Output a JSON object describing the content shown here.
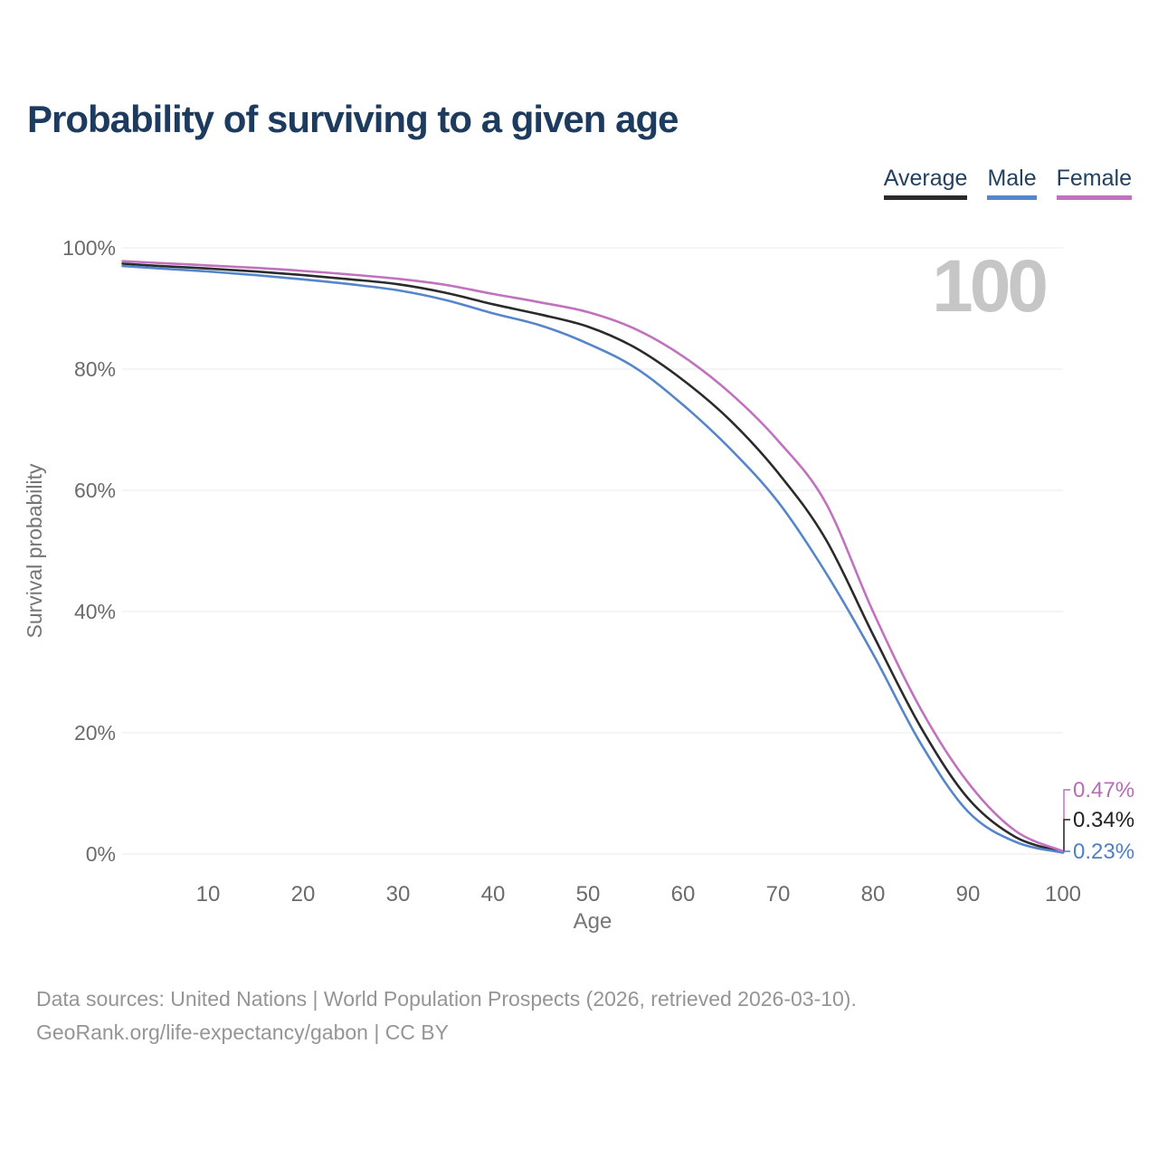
{
  "title": "Probability of surviving to a given age",
  "watermark": "100",
  "legend": [
    {
      "label": "Average",
      "color": "#2b2b2b"
    },
    {
      "label": "Male",
      "color": "#5585cb"
    },
    {
      "label": "Female",
      "color": "#c172bf"
    }
  ],
  "end_labels": [
    {
      "text": "0.47%",
      "value": 0.47,
      "color": "#b86cb5"
    },
    {
      "text": "0.34%",
      "value": 0.34,
      "color": "#222222"
    },
    {
      "text": "0.23%",
      "value": 0.23,
      "color": "#4f7fc7"
    }
  ],
  "footer": {
    "line1": "Data sources: United Nations | World Population Prospects (2026, retrieved 2026-03-10).",
    "line2": "GeoRank.org/life-expectancy/gabon | CC BY"
  },
  "chart_data": {
    "type": "line",
    "title": "Probability of surviving to a given age",
    "xlabel": "Age",
    "ylabel": "Survival probability",
    "xlim": [
      0,
      100
    ],
    "ylim": [
      0,
      100
    ],
    "grid": "horizontal",
    "legend_position": "top-right",
    "x_ticks": [
      10,
      20,
      30,
      40,
      50,
      60,
      70,
      80,
      90,
      100
    ],
    "y_ticks": [
      0,
      20,
      40,
      60,
      80,
      100
    ],
    "y_tick_labels": [
      "0%",
      "20%",
      "40%",
      "60%",
      "80%",
      "100%"
    ],
    "x": [
      1,
      5,
      10,
      15,
      20,
      25,
      30,
      35,
      40,
      45,
      50,
      55,
      60,
      65,
      70,
      75,
      80,
      85,
      90,
      95,
      100
    ],
    "series": [
      {
        "name": "Average",
        "color": "#2b2b2b",
        "values": [
          97.4,
          97.0,
          96.6,
          96.1,
          95.5,
          94.8,
          94.0,
          92.6,
          90.7,
          89.0,
          87.0,
          83.5,
          78.2,
          71.5,
          62.9,
          52.0,
          36.2,
          21.0,
          9.2,
          2.8,
          0.34
        ]
      },
      {
        "name": "Male",
        "color": "#5585cb",
        "values": [
          97.0,
          96.6,
          96.1,
          95.5,
          94.8,
          94.0,
          93.0,
          91.4,
          89.2,
          87.2,
          84.2,
          80.2,
          74.1,
          66.8,
          58.1,
          46.5,
          33.0,
          18.3,
          7.0,
          2.0,
          0.23
        ]
      },
      {
        "name": "Female",
        "color": "#c172bf",
        "values": [
          97.8,
          97.5,
          97.1,
          96.7,
          96.2,
          95.6,
          94.9,
          93.9,
          92.4,
          91.0,
          89.4,
          86.6,
          82.1,
          76.0,
          68.2,
          58.0,
          40.0,
          24.0,
          11.8,
          3.8,
          0.47
        ]
      }
    ]
  }
}
